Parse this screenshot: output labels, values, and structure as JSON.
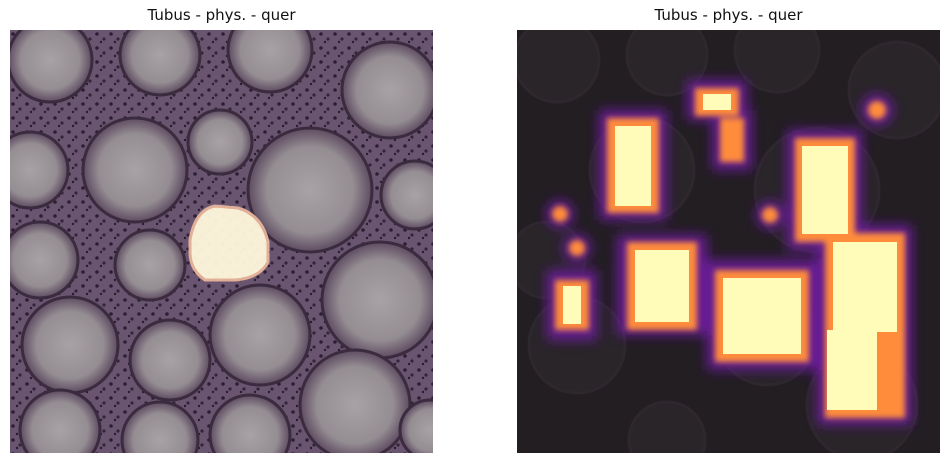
{
  "panels": [
    {
      "title": "Tubus - phys. - quer"
    },
    {
      "title": "Tubus - phys. - quer"
    }
  ],
  "colors": {
    "tissue_bg": "#5c4a5e",
    "crypt_fill": "#9a9499",
    "crypt_edge": "#3a2a3c",
    "highlight": "#fffbe0",
    "overlay_dark": "#1e1a1e",
    "heat_hot": "#fffbb5",
    "heat_mid": "#ff9a3a",
    "heat_low": "#7a1fa0"
  }
}
